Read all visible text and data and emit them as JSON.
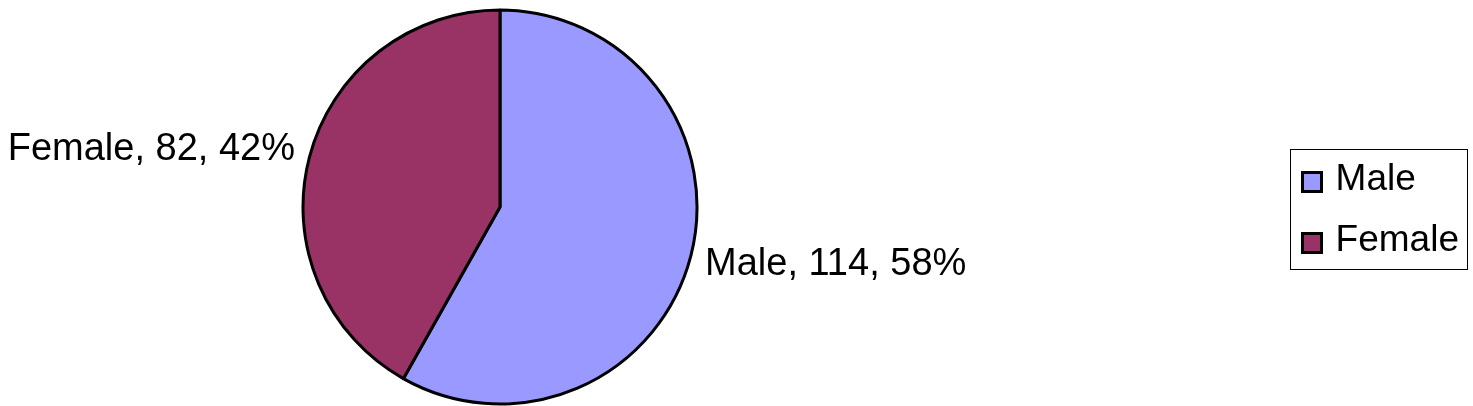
{
  "chart_data": {
    "type": "pie",
    "categories": [
      "Male",
      "Female"
    ],
    "values": [
      114,
      82
    ],
    "colors": [
      "#9999ff",
      "#993366"
    ],
    "value_labels": [
      "Male, 114, 58%",
      "Female, 82, 42%"
    ],
    "legend": "right"
  }
}
